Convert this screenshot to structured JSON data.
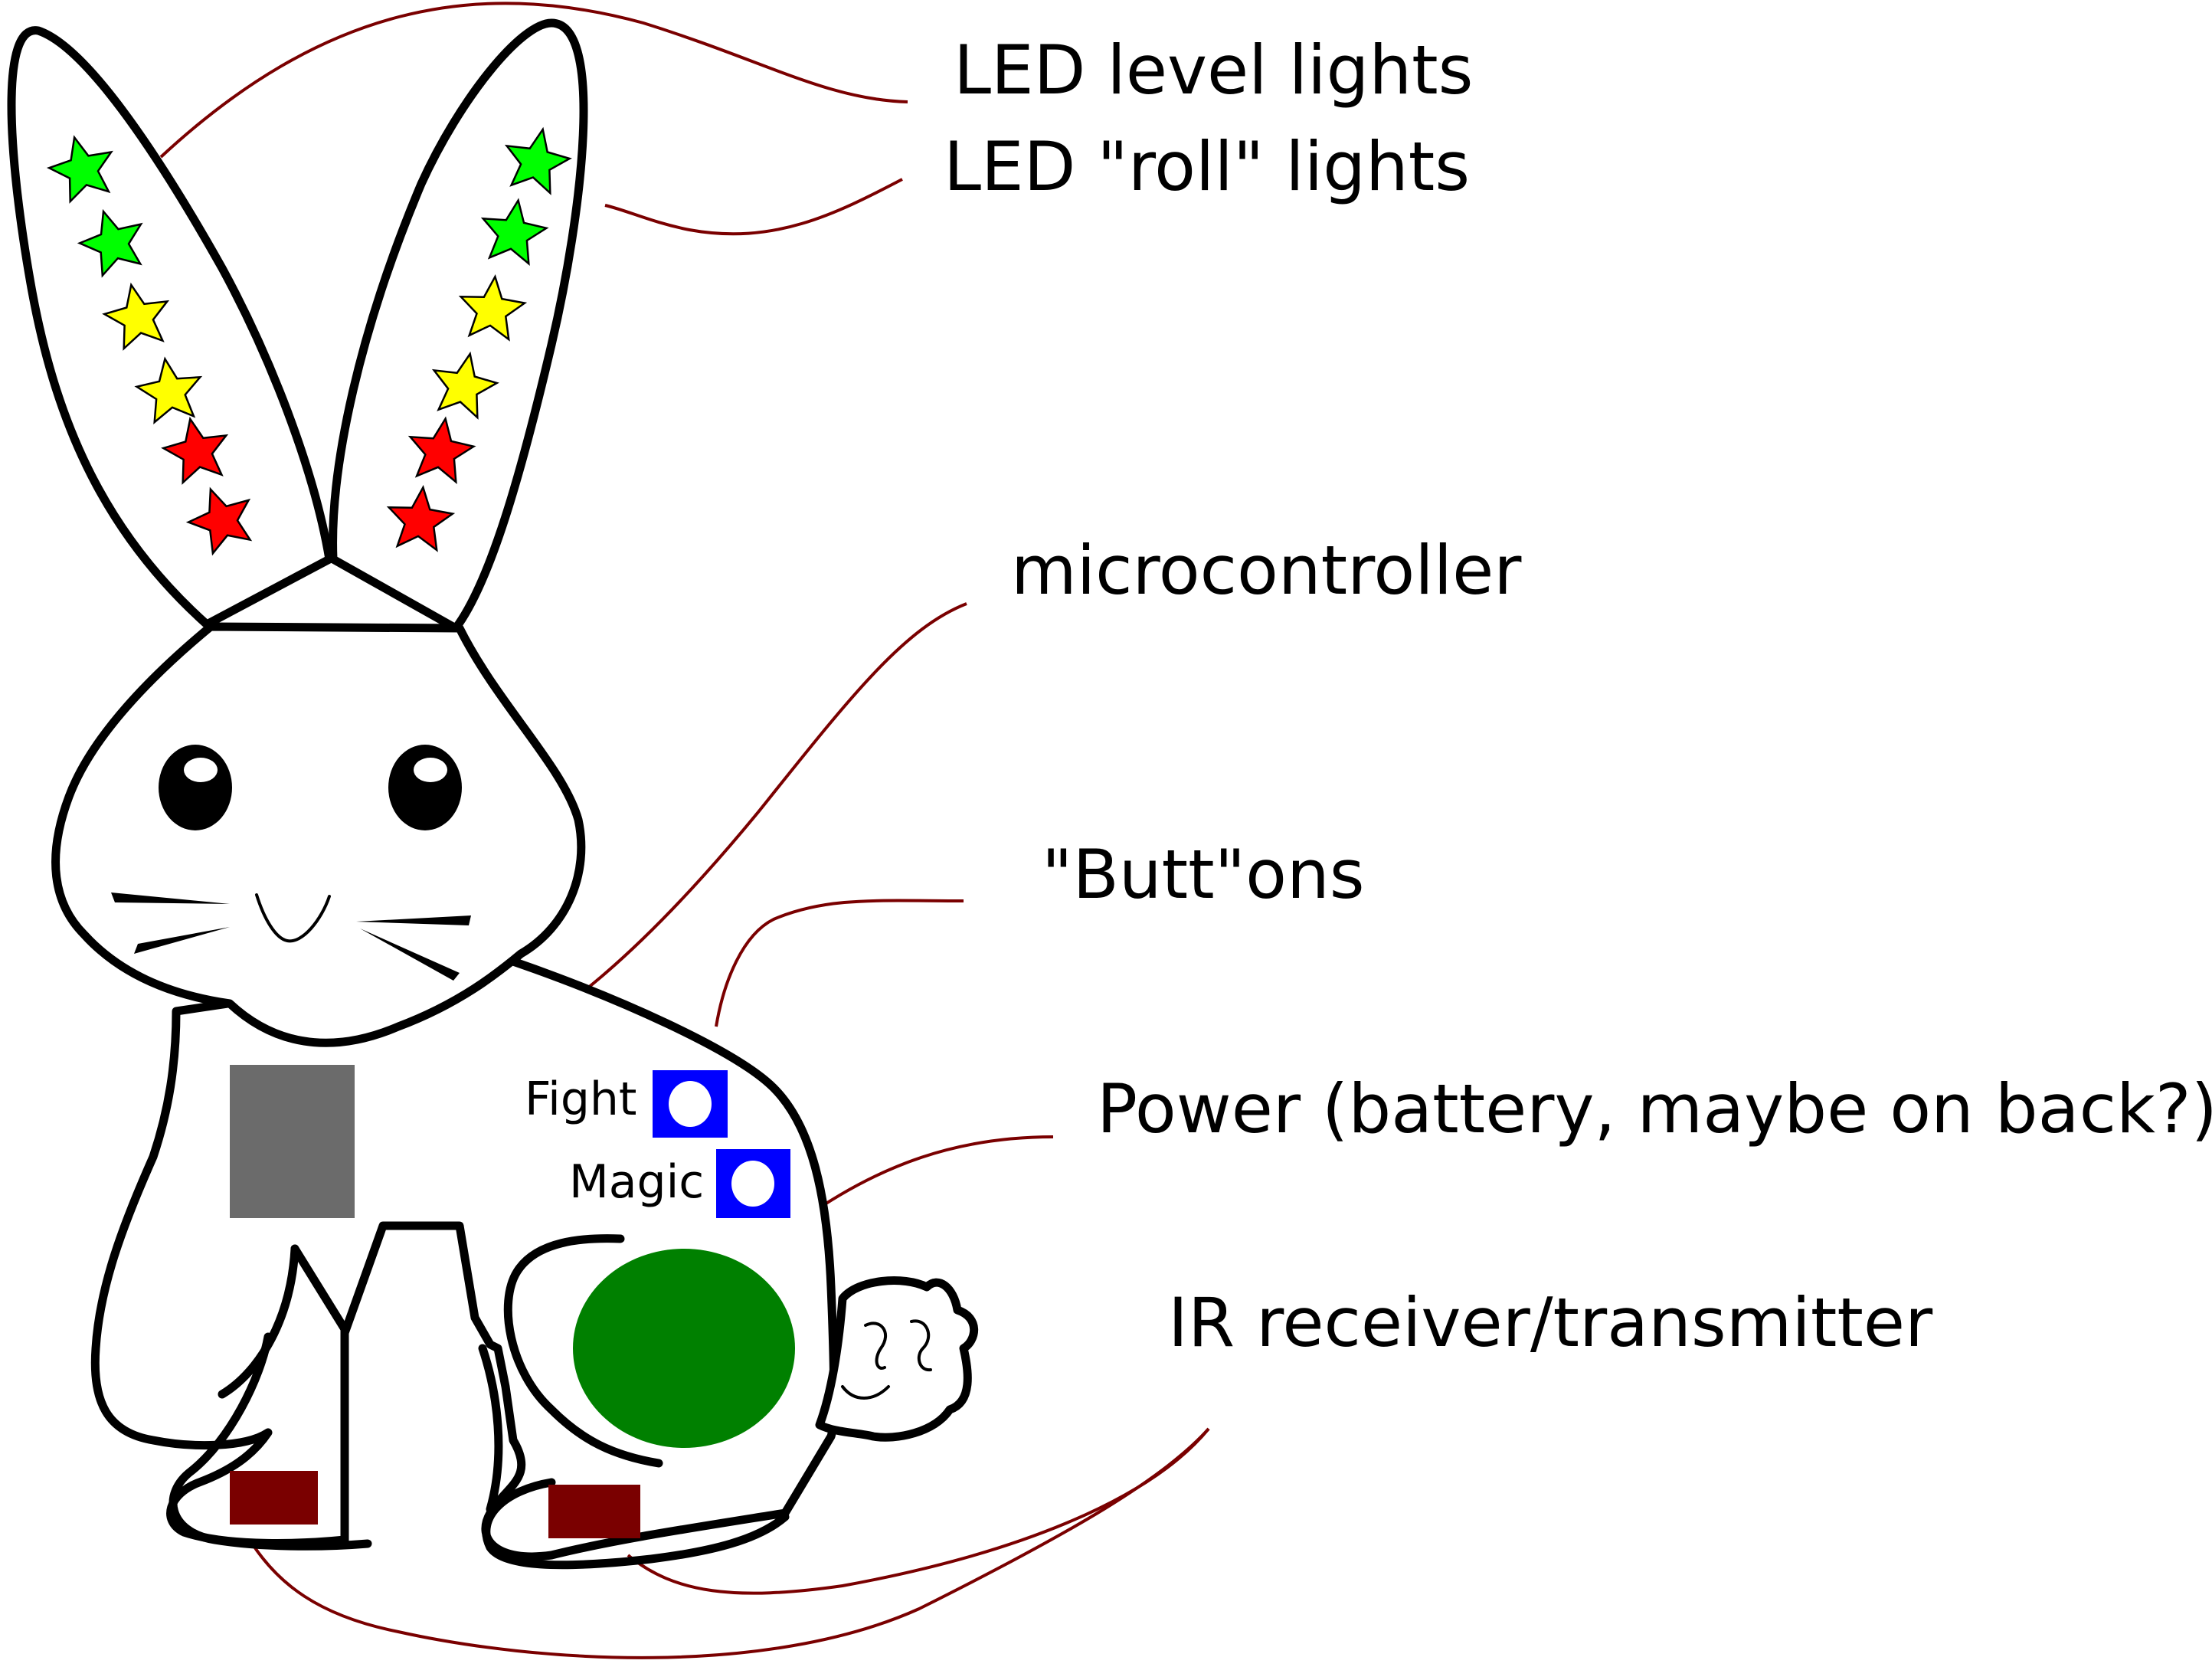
{
  "labels": {
    "led_level": "LED level lights",
    "led_roll": "LED \"roll\" lights",
    "microcontroller": "microcontroller",
    "buttons": "\"Butt\"ons",
    "power": "Power (battery, maybe on back?)",
    "ir": "IR receiver/transmitter",
    "fight": "Fight",
    "magic": "Magic"
  },
  "colors": {
    "callout_line": "#7a0000",
    "microcontroller_block": "#6b6b6b",
    "button_block": "#0000ff",
    "power_disc": "#008000",
    "ir_block": "#7a0000",
    "star_green": "#00ff00",
    "star_yellow": "#ffff00",
    "star_red": "#ff0000"
  },
  "left_ear_stars": [
    "green",
    "green",
    "yellow",
    "yellow",
    "red",
    "red"
  ],
  "right_ear_stars": [
    "green",
    "green",
    "yellow",
    "yellow",
    "red",
    "red"
  ]
}
